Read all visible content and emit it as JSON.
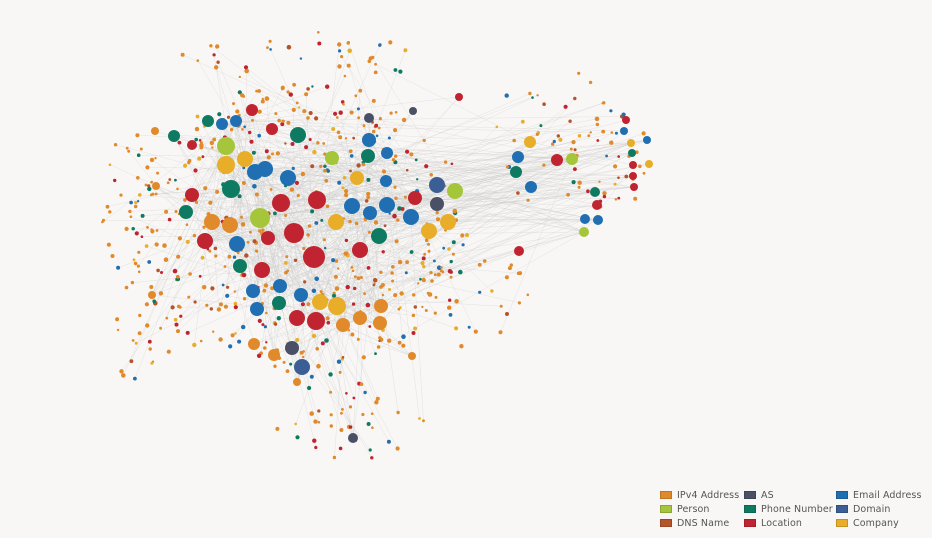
{
  "legend": {
    "items": [
      {
        "label": "IPv4 Address",
        "color": "#e08a2c"
      },
      {
        "label": "AS",
        "color": "#4a5065"
      },
      {
        "label": "Email Address",
        "color": "#1f6fb2"
      },
      {
        "label": "Person",
        "color": "#a5c63b"
      },
      {
        "label": "Phone Number",
        "color": "#0f7a62"
      },
      {
        "label": "Domain",
        "color": "#3b5f95"
      },
      {
        "label": "DNS Name",
        "color": "#b5532a"
      },
      {
        "label": "Location",
        "color": "#c02430"
      },
      {
        "label": "Company",
        "color": "#e8ae2a"
      }
    ]
  }
}
